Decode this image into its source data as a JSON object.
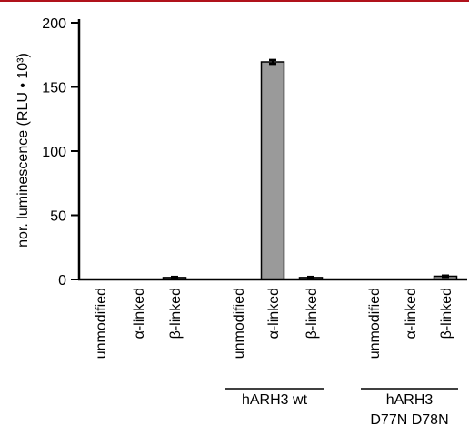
{
  "colors": {
    "top_rule": "#b0121b",
    "bar_fill": "#9a9a9a",
    "bar_stroke": "#000000"
  },
  "chart_data": {
    "type": "bar",
    "ylabel": "nor. luminescence (RLU • 10³)",
    "ylim": [
      0,
      200
    ],
    "yticks": [
      0,
      50,
      100,
      150,
      200
    ],
    "grid": false,
    "categories": [
      "unmodified",
      "α-linked",
      "β-linked",
      "unmodified",
      "α-linked",
      "β-linked",
      "unmodified",
      "α-linked",
      "β-linked"
    ],
    "values": [
      0,
      0,
      1.5,
      0,
      169.5,
      1.5,
      0,
      0,
      2.5
    ],
    "errors": [
      0,
      0,
      0.5,
      0,
      1.5,
      0.5,
      0,
      0,
      0.5
    ],
    "groups": [
      {
        "label": "hARH3 wt",
        "start": 3,
        "end": 5
      },
      {
        "label": "hARH3",
        "label2": "D77N D78N",
        "start": 6,
        "end": 8
      }
    ]
  }
}
